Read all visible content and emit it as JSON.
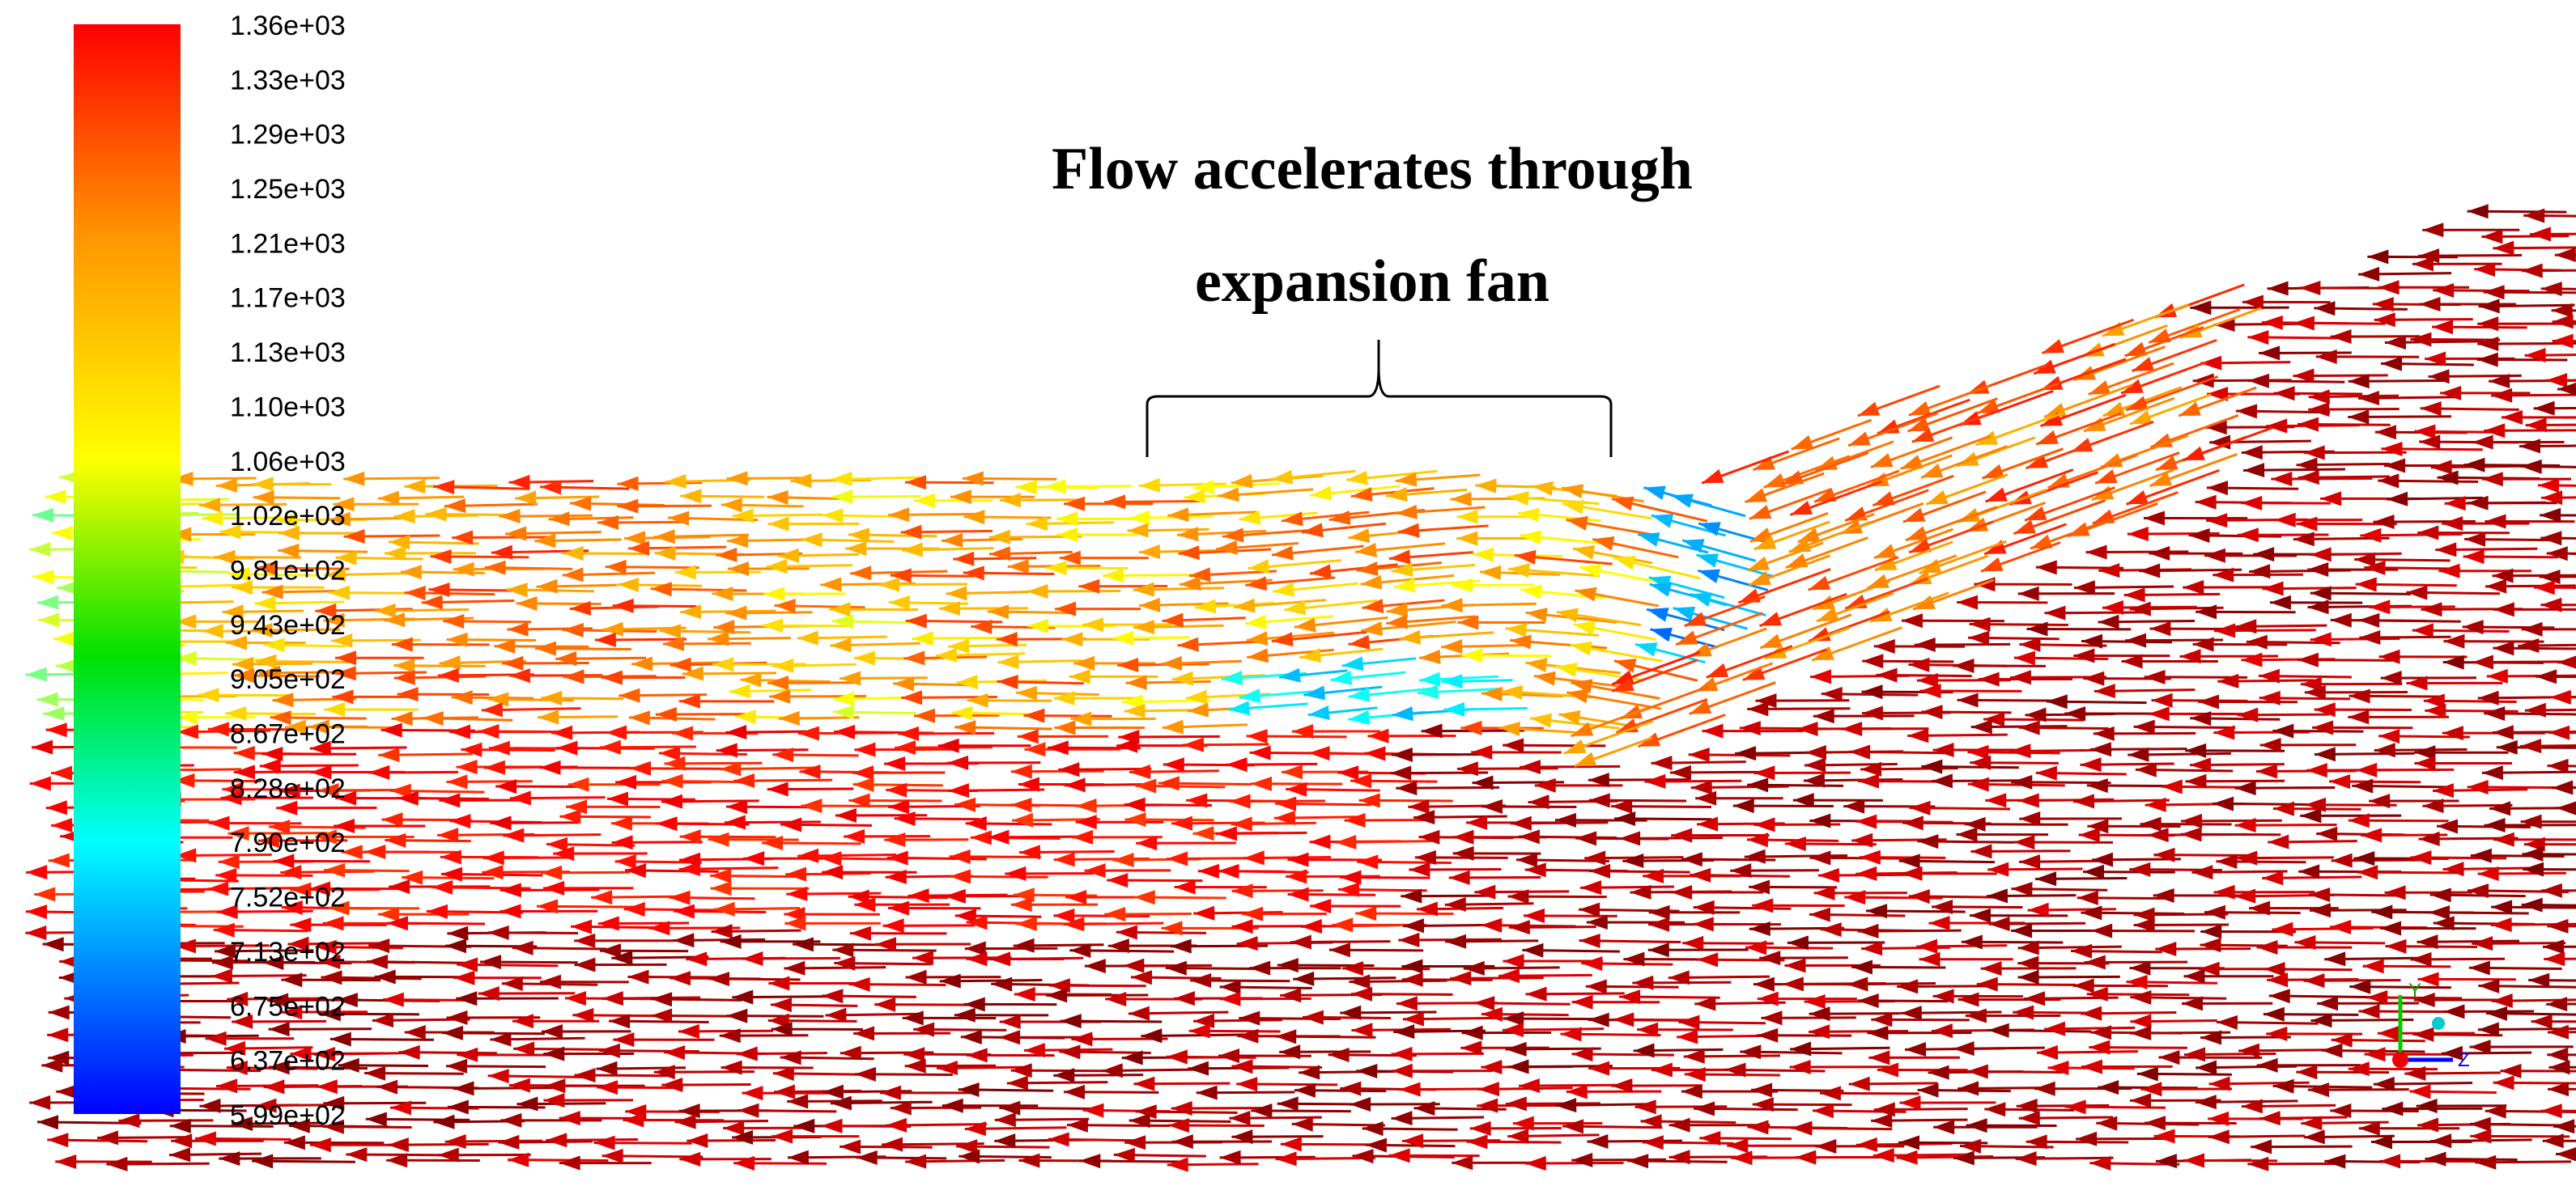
{
  "colorbar": {
    "labels": [
      "1.36e+03",
      "1.33e+03",
      "1.29e+03",
      "1.25e+03",
      "1.21e+03",
      "1.17e+03",
      "1.13e+03",
      "1.10e+03",
      "1.06e+03",
      "1.02e+03",
      "9.81e+02",
      "9.43e+02",
      "9.05e+02",
      "8.67e+02",
      "8.28e+02",
      "7.90e+02",
      "7.52e+02",
      "7.13e+02",
      "6.75e+02",
      "6.37e+02",
      "5.99e+02"
    ]
  },
  "annotation": {
    "lines": [
      "Flow accelerates through",
      "expansion fan"
    ]
  },
  "axes": {
    "y": "Y",
    "z": "Z"
  }
}
